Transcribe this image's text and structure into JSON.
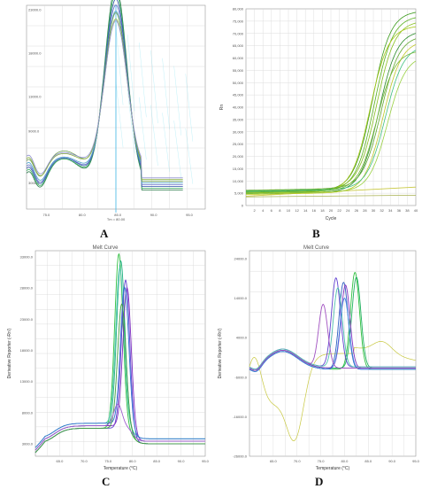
{
  "chart_data": [
    {
      "label": "A",
      "type": "line",
      "title": "",
      "xlabel": "",
      "ylabel": "",
      "xlim": [
        70.0,
        90.0
      ],
      "ylim": [
        0,
        23500
      ],
      "xticks": [
        "75.0",
        "80.0",
        "85.0",
        "90.0",
        "95.0"
      ],
      "xtick_values": [
        75,
        80,
        85,
        90,
        95
      ],
      "yticks": [
        "3000.0",
        "9000.0",
        "13000.0",
        "18000.0",
        "23000.0"
      ],
      "ytick_values": [
        3000,
        9000,
        13000,
        18000,
        23000
      ],
      "vline_x": 80.0,
      "vline_label": "Tm = 80.00",
      "curves": [
        {
          "color": "#2a7a4a",
          "peak": 23000,
          "mid": 5800
        },
        {
          "color": "#38b060",
          "peak": 22000,
          "mid": 5500
        },
        {
          "color": "#3050a8",
          "peak": 21000,
          "mid": 5300
        },
        {
          "color": "#6070c8",
          "peak": 20000,
          "mid": 5000
        },
        {
          "color": "#48a0c8",
          "peak": 19000,
          "mid": 4800
        },
        {
          "color": "#6a9a50",
          "peak": 18500,
          "mid": 5200
        },
        {
          "color": "#8ab040",
          "peak": 17500,
          "mid": 4600
        },
        {
          "color": "#9090d0",
          "peak": 17000,
          "mid": 4400
        }
      ]
    },
    {
      "label": "B",
      "type": "line",
      "title": "",
      "xlabel": "Cycle",
      "ylabel": "Rn",
      "xlim": [
        1,
        40
      ],
      "ylim": [
        0,
        80000
      ],
      "xticks": [
        "2",
        "4",
        "6",
        "8",
        "10",
        "12",
        "14",
        "16",
        "18",
        "20",
        "22",
        "24",
        "26",
        "28",
        "30",
        "32",
        "34",
        "36",
        "38",
        "40"
      ],
      "yticks": [
        "0",
        "5,000",
        "10,000",
        "15,000",
        "20,000",
        "25,000",
        "30,000",
        "35,000",
        "40,000",
        "45,000",
        "50,000",
        "55,000",
        "60,000",
        "65,000",
        "70,000",
        "75,000",
        "80,000"
      ],
      "curves": [
        {
          "color": "#3a9a1a",
          "plateau": 78000,
          "midpoint": 30.0,
          "base": 5500
        },
        {
          "color": "#58b020",
          "plateau": 76000,
          "midpoint": 30.5,
          "base": 5200
        },
        {
          "color": "#88c020",
          "plateau": 74000,
          "midpoint": 31.0,
          "base": 6000
        },
        {
          "color": "#a8c818",
          "plateau": 72000,
          "midpoint": 29.5,
          "base": 5000
        },
        {
          "color": "#2a8a2a",
          "plateau": 70000,
          "midpoint": 31.5,
          "base": 4800
        },
        {
          "color": "#60a830",
          "plateau": 68000,
          "midpoint": 32.0,
          "base": 6200
        },
        {
          "color": "#c0c828",
          "plateau": 66000,
          "midpoint": 32.5,
          "base": 4500
        },
        {
          "color": "#40c080",
          "plateau": 64000,
          "midpoint": 33.0,
          "base": 5800
        },
        {
          "color": "#78b838",
          "plateau": 62000,
          "midpoint": 31.0,
          "base": 5300
        },
        {
          "color": "#98d040",
          "plateau": 60000,
          "midpoint": 33.5,
          "base": 4900
        }
      ],
      "flat_lines": [
        {
          "color": "#c8c840",
          "start": 3800,
          "end": 7500
        },
        {
          "color": "#a8b050",
          "start": 3500,
          "end": 4200
        }
      ]
    },
    {
      "label": "C",
      "type": "line",
      "title": "Melt Curve",
      "xlabel": "Temperature (°C)",
      "ylabel": "Derivative Reporter (-Rn')",
      "xlim": [
        60,
        95
      ],
      "ylim": [
        1000,
        34000
      ],
      "xticks": [
        "65.0",
        "70.0",
        "75.0",
        "80.0",
        "85.0",
        "90.0",
        "95.0"
      ],
      "xtick_values": [
        65,
        70,
        75,
        80,
        85,
        90,
        95
      ],
      "yticks": [
        "3000.0",
        "8000.0",
        "13000.0",
        "18000.0",
        "23000.0",
        "28000.0",
        "33000.0"
      ],
      "ytick_values": [
        3000,
        8000,
        13000,
        18000,
        23000,
        28000,
        33000
      ],
      "curves": [
        {
          "color": "#30c040",
          "peak": 33000,
          "center": 77.2
        },
        {
          "color": "#20b080",
          "peak": 31500,
          "center": 77.6
        },
        {
          "color": "#50c8b0",
          "peak": 30000,
          "center": 77.4
        },
        {
          "color": "#6040d0",
          "peak": 29000,
          "center": 78.6
        },
        {
          "color": "#8030c0",
          "peak": 27500,
          "center": 78.9
        },
        {
          "color": "#3070d0",
          "peak": 27000,
          "center": 78.4
        },
        {
          "color": "#40a040",
          "peak": 25000,
          "center": 77.8
        },
        {
          "color": "#a060d0",
          "peak": 8500,
          "center": 77.0
        }
      ]
    },
    {
      "label": "D",
      "type": "line",
      "title": "Melt Curve",
      "xlabel": "Temperature (°C)",
      "ylabel": "Derivative Reporter (-Rn')",
      "xlim": [
        60,
        95
      ],
      "ylim": [
        -26000,
        26000
      ],
      "xticks": [
        "65.0",
        "70.0",
        "75.0",
        "80.0",
        "85.0",
        "90.0",
        "95.0"
      ],
      "xtick_values": [
        65,
        70,
        75,
        80,
        85,
        90,
        95
      ],
      "yticks": [
        "24000.0",
        "14000.0",
        "4000.0",
        "-6000.0",
        "-16000.0",
        "-26000.0"
      ],
      "ytick_values": [
        24000,
        14000,
        4000,
        -6000,
        -16000,
        -26000
      ],
      "curves": [
        {
          "color": "#30c040",
          "peak": 24500,
          "center": 82.2
        },
        {
          "color": "#20b060",
          "peak": 23000,
          "center": 82.5
        },
        {
          "color": "#6040d0",
          "peak": 22500,
          "center": 78.2
        },
        {
          "color": "#3060c0",
          "peak": 22000,
          "center": 79.8
        },
        {
          "color": "#8030c0",
          "peak": 21000,
          "center": 80.2
        },
        {
          "color": "#50c0b0",
          "peak": 20000,
          "center": 78.6
        },
        {
          "color": "#4080e0",
          "peak": 18000,
          "center": 80.0
        },
        {
          "color": "#a050c0",
          "peak": 16000,
          "center": 75.5
        }
      ],
      "outlier": {
        "color": "#c8c840"
      }
    }
  ]
}
